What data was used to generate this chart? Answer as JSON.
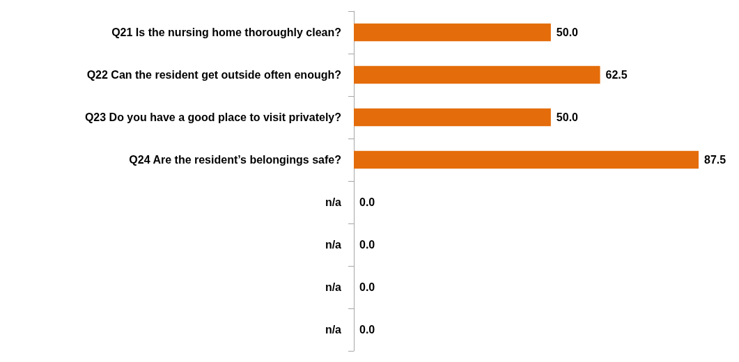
{
  "chart_data": {
    "type": "bar",
    "orientation": "horizontal",
    "categories": [
      "Q21 Is the nursing home thoroughly clean?",
      "Q22 Can the resident get outside often enough?",
      "Q23 Do you have a good place to visit privately?",
      "Q24 Are the resident’s belongings safe?",
      "n/a",
      "n/a",
      "n/a",
      "n/a"
    ],
    "values": [
      50.0,
      62.5,
      50.0,
      87.5,
      0,
      0,
      0,
      0
    ],
    "value_labels": [
      "50.0",
      "62.5",
      "50.0",
      "87.5",
      "0.0",
      "0.0",
      "0.0",
      "0.0"
    ],
    "color": "#e46c0a",
    "grid": false
  }
}
